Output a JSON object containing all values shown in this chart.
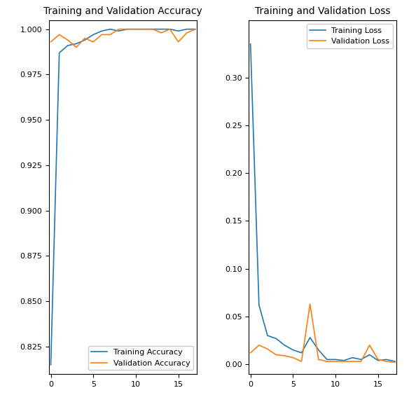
{
  "title_acc": "Training and Validation Accuracy",
  "title_loss": "Training and Validation Loss",
  "legend_acc": [
    "Training Accuracy",
    "Validation Accuracy"
  ],
  "legend_loss": [
    "Training Loss",
    "Validation Loss"
  ],
  "color_train": "#1f77b4",
  "color_val": "#ff7f0e",
  "epochs": [
    0,
    1,
    2,
    3,
    4,
    5,
    6,
    7,
    8,
    9,
    10,
    11,
    12,
    13,
    14,
    15,
    16,
    17
  ],
  "train_acc": [
    0.815,
    0.987,
    0.991,
    0.992,
    0.994,
    0.997,
    0.999,
    1.0,
    0.999,
    1.0,
    1.0,
    1.0,
    1.0,
    1.0,
    1.0,
    0.999,
    1.0,
    1.0
  ],
  "val_acc": [
    0.993,
    0.997,
    0.994,
    0.99,
    0.995,
    0.993,
    0.997,
    0.997,
    1.0,
    1.0,
    1.0,
    1.0,
    1.0,
    0.998,
    1.0,
    0.993,
    0.998,
    1.0
  ],
  "train_loss": [
    0.335,
    0.062,
    0.03,
    0.027,
    0.02,
    0.015,
    0.012,
    0.028,
    0.015,
    0.005,
    0.005,
    0.004,
    0.007,
    0.005,
    0.01,
    0.004,
    0.005,
    0.003
  ],
  "val_loss": [
    0.012,
    0.02,
    0.016,
    0.01,
    0.009,
    0.007,
    0.003,
    0.063,
    0.005,
    0.003,
    0.003,
    0.003,
    0.003,
    0.003,
    0.02,
    0.005,
    0.003,
    0.002
  ],
  "acc_ylim": [
    0.81,
    1.005
  ],
  "loss_ylim": [
    -0.01,
    0.36
  ],
  "acc_yticks": [
    0.825,
    0.85,
    0.875,
    0.9,
    0.925,
    0.95,
    0.975,
    1.0
  ],
  "loss_yticks": [
    0.0,
    0.05,
    0.1,
    0.15,
    0.2,
    0.25,
    0.3
  ],
  "xlim": [
    -0.2,
    17.2
  ],
  "xticks": [
    0,
    5,
    10,
    15
  ]
}
